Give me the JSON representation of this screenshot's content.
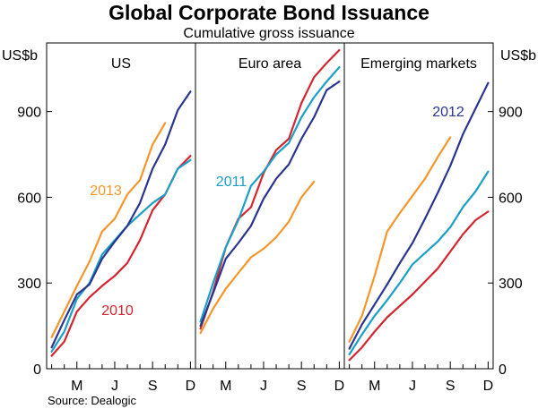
{
  "chart_data": {
    "type": "line",
    "title": "Global Corporate Bond Issuance",
    "subtitle": "Cumulative gross issuance",
    "ylabel_left": "US$b",
    "ylabel_right": "US$b",
    "ylim": [
      0,
      1140
    ],
    "yticks": [
      0,
      300,
      600,
      900
    ],
    "yticks_labels": [
      "0",
      "300",
      "600",
      "900"
    ],
    "xlim": [
      0.6,
      12.4
    ],
    "xticks": [
      {
        "label": "M",
        "month": 3
      },
      {
        "label": "J",
        "month": 6
      },
      {
        "label": "S",
        "month": 9
      },
      {
        "label": "D",
        "month": 12
      }
    ],
    "source": "Source: Dealogic",
    "colors": {
      "2010": "#d42530",
      "2011": "#1aa0c6",
      "2012": "#2b3590",
      "2013": "#f5962a"
    },
    "panels": [
      {
        "name": "US",
        "title": "US",
        "label": {
          "text": "2013",
          "series": "2013"
        },
        "label2": {
          "text": "2010",
          "series": "2010"
        },
        "series": [
          {
            "name": "2010",
            "values": [
              45,
              95,
              200,
              250,
              290,
              325,
              370,
              450,
              555,
              610,
              700,
              745
            ]
          },
          {
            "name": "2011",
            "values": [
              60,
              130,
              245,
              300,
              400,
              450,
              500,
              540,
              580,
              610,
              700,
              730
            ]
          },
          {
            "name": "2012",
            "values": [
              75,
              170,
              260,
              295,
              385,
              445,
              500,
              580,
              700,
              785,
              905,
              970
            ]
          },
          {
            "name": "2013",
            "values": [
              110,
              200,
              290,
              375,
              480,
              525,
              610,
              660,
              785,
              860
            ]
          }
        ]
      },
      {
        "name": "Euro area",
        "title": "Euro area",
        "label": {
          "text": "2011",
          "series": "2011"
        },
        "series": [
          {
            "name": "2010",
            "values": [
              140,
              270,
              425,
              525,
              565,
              685,
              765,
              805,
              930,
              1020,
              1070,
              1115
            ]
          },
          {
            "name": "2011",
            "values": [
              165,
              300,
              425,
              520,
              640,
              690,
              750,
              790,
              880,
              950,
              1005,
              1055
            ]
          },
          {
            "name": "2012",
            "values": [
              150,
              265,
              385,
              440,
              500,
              595,
              665,
              715,
              805,
              880,
              975,
              1005
            ]
          },
          {
            "name": "2013",
            "values": [
              125,
              210,
              280,
              335,
              390,
              420,
              460,
              515,
              600,
              655
            ]
          }
        ]
      },
      {
        "name": "Emerging markets",
        "title": "Emerging markets",
        "label": {
          "text": "2012",
          "series": "2012"
        },
        "series": [
          {
            "name": "2010",
            "values": [
              30,
              75,
              130,
              180,
              220,
              260,
              305,
              350,
              410,
              470,
              520,
              550
            ]
          },
          {
            "name": "2011",
            "values": [
              50,
              120,
              185,
              240,
              300,
              365,
              405,
              445,
              495,
              565,
              620,
              690
            ]
          },
          {
            "name": "2012",
            "values": [
              70,
              155,
              225,
              295,
              370,
              440,
              525,
              615,
              710,
              820,
              910,
              1000
            ]
          },
          {
            "name": "2013",
            "values": [
              95,
              185,
              325,
              480,
              545,
              605,
              665,
              740,
              810
            ]
          }
        ]
      }
    ]
  }
}
